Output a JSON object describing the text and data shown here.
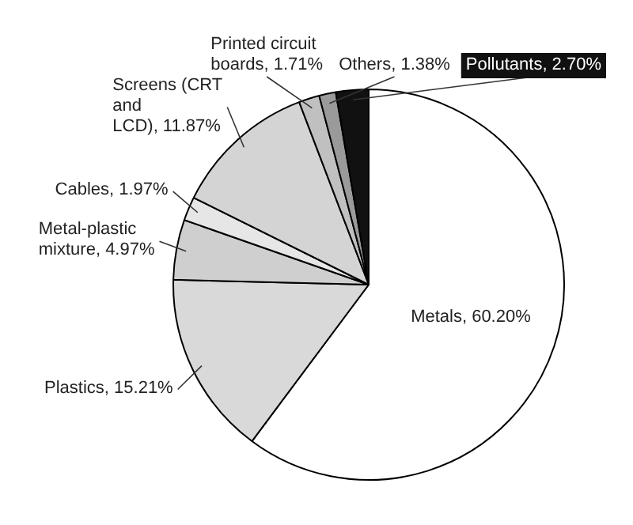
{
  "chart_data": {
    "type": "pie",
    "categories": [
      "Metals",
      "Plastics",
      "Metal-plastic mixture",
      "Cables",
      "Screens (CRT and LCD)",
      "Printed circuit boards",
      "Others",
      "Pollutants"
    ],
    "values": [
      60.2,
      15.21,
      4.97,
      1.97,
      11.87,
      1.71,
      1.38,
      2.7
    ],
    "value_labels": [
      "60.20%",
      "15.21%",
      "4.97%",
      "1.97%",
      "11.87%",
      "1.71%",
      "1.38%",
      "2.70%"
    ],
    "colors": [
      "#ffffff",
      "#d9d9d9",
      "#cfcfcf",
      "#e6e6e6",
      "#d4d4d4",
      "#c0c0c0",
      "#9a9a9a",
      "#111111"
    ]
  }
}
